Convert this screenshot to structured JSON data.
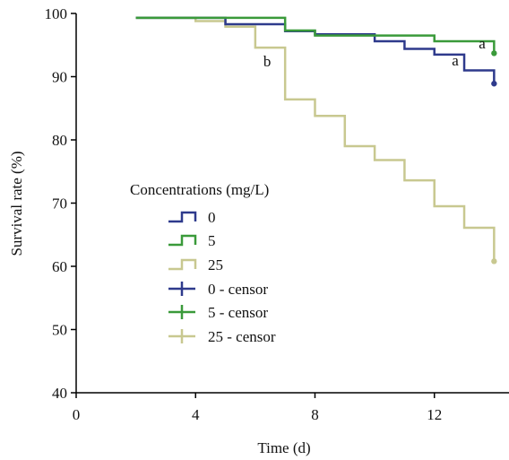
{
  "chart_data": {
    "type": "line",
    "title": "",
    "xlabel": "Time (d)",
    "ylabel": "Survival rate (%)",
    "xlim": [
      0,
      14.5
    ],
    "ylim": [
      40,
      100
    ],
    "xticks": [
      0,
      4,
      8,
      12
    ],
    "yticks": [
      40,
      50,
      60,
      70,
      80,
      90,
      100
    ],
    "grid": false,
    "legend": {
      "title": "Concentrations (mg/L)",
      "placement": "center-left",
      "entries": [
        {
          "label": "0",
          "series": "0",
          "marker": "step"
        },
        {
          "label": "5",
          "series": "5",
          "marker": "step"
        },
        {
          "label": "25",
          "series": "25",
          "marker": "step"
        },
        {
          "label": "0 - censor",
          "series": "0",
          "marker": "cross"
        },
        {
          "label": "5 - censor",
          "series": "5",
          "marker": "cross"
        },
        {
          "label": "25 - censor",
          "series": "25",
          "marker": "cross"
        }
      ]
    },
    "series": [
      {
        "name": "0",
        "color": "#2e3a8c",
        "x": [
          2,
          5,
          7,
          8,
          10,
          11,
          12,
          13,
          14
        ],
        "y": [
          99.3,
          98.3,
          97.2,
          96.7,
          95.6,
          94.4,
          93.5,
          91.0,
          88.9
        ],
        "censor": {
          "x": 14,
          "y": 88.9
        }
      },
      {
        "name": "5",
        "color": "#3a9a3a",
        "x": [
          2,
          4,
          7,
          8,
          12,
          14
        ],
        "y": [
          99.3,
          99.3,
          97.3,
          96.5,
          95.6,
          93.7
        ],
        "censor": {
          "x": 14,
          "y": 93.7
        }
      },
      {
        "name": "25",
        "color": "#c8c890",
        "x": [
          2,
          4,
          5,
          6,
          7,
          8,
          9,
          10,
          11,
          12,
          13,
          14
        ],
        "y": [
          99.3,
          98.8,
          97.9,
          94.6,
          86.4,
          83.8,
          79.0,
          76.8,
          73.6,
          69.5,
          66.1,
          60.8
        ],
        "censor": {
          "x": 14,
          "y": 60.8
        }
      }
    ],
    "annotations": [
      {
        "text": "a",
        "x": 13.6,
        "y": 94.5
      },
      {
        "text": "a",
        "x": 12.7,
        "y": 91.8
      },
      {
        "text": "b",
        "x": 6.4,
        "y": 91.6
      }
    ]
  }
}
